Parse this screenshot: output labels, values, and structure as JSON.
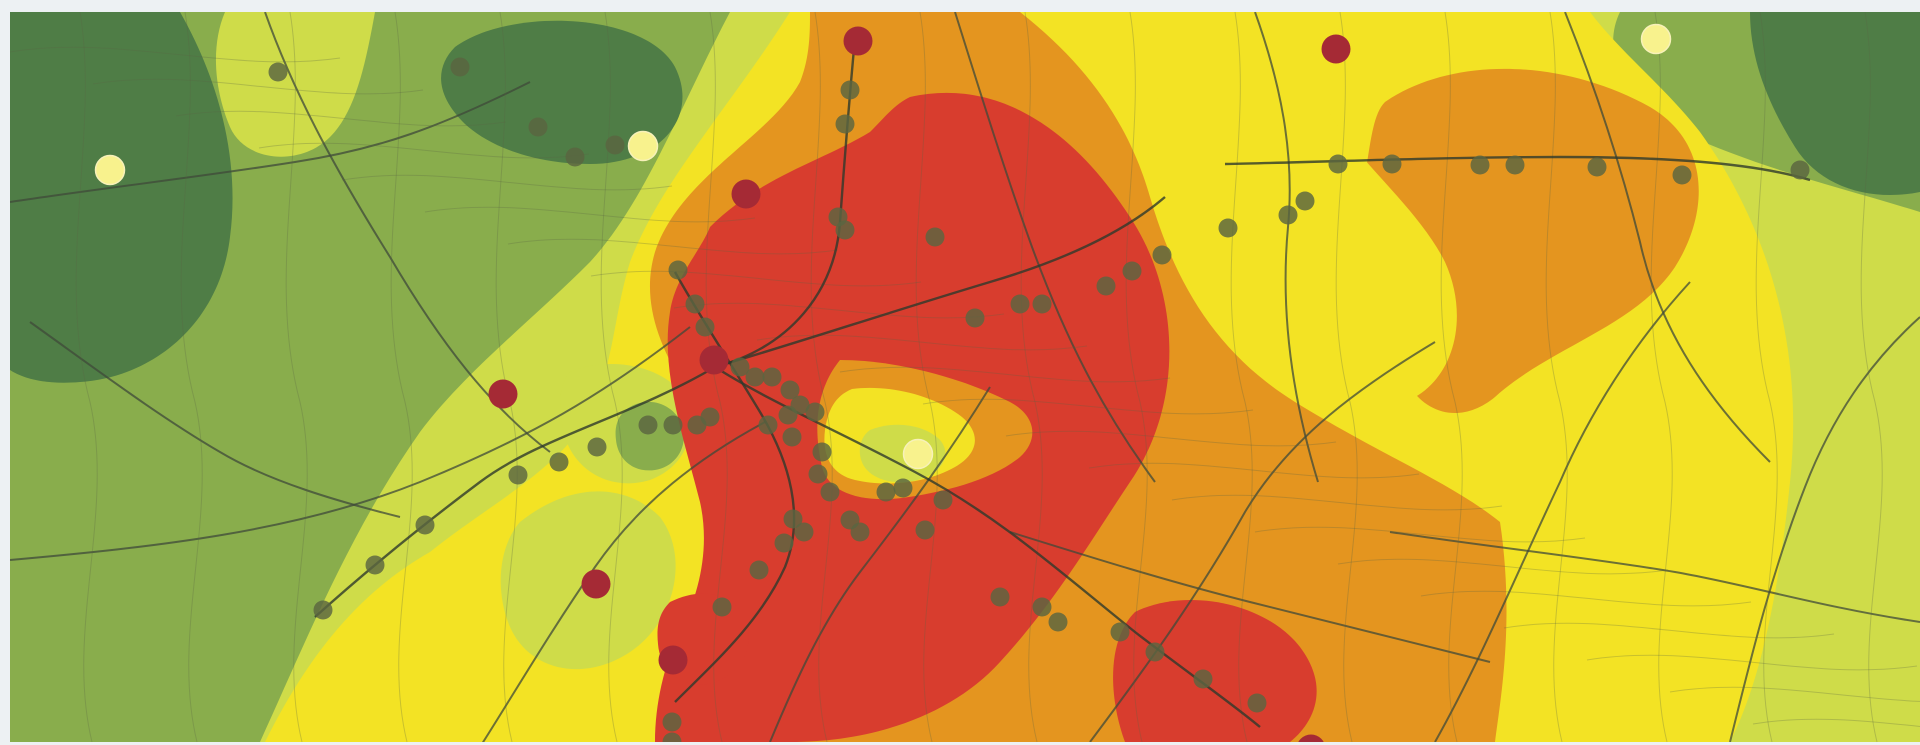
{
  "map": {
    "zone_colors": {
      "dark_green": "#4f7d46",
      "mid_green": "#89ad4c",
      "light_green": "#cfdc49",
      "yellow": "#f3e324",
      "orange": "#e4951f",
      "red": "#d83d2e"
    },
    "station_colors": {
      "small_station": "#5a6541",
      "major_station": "#a52a35",
      "light_station": "#f8f28d"
    },
    "legend": [],
    "labels": []
  }
}
